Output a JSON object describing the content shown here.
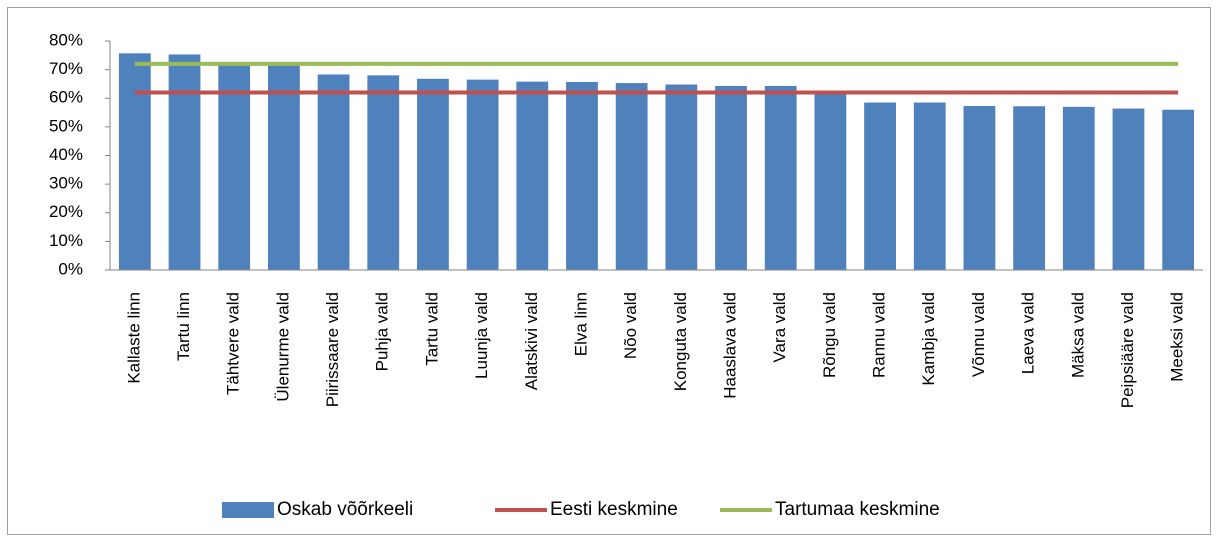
{
  "chart_data": {
    "type": "bar",
    "categories": [
      "Kallaste linn",
      "Tartu linn",
      "Tähtvere vald",
      "Ülenurme vald",
      "Piirissaare vald",
      "Puhja vald",
      "Tartu vald",
      "Luunja vald",
      "Alatskivi vald",
      "Elva linn",
      "Nõo vald",
      "Konguta vald",
      "Haaslava vald",
      "Vara vald",
      "Rõngu vald",
      "Rannu vald",
      "Kambja vald",
      "Võnnu vald",
      "Laeva vald",
      "Mäksa vald",
      "Peipsiääre vald",
      "Meeksi vald"
    ],
    "series": [
      {
        "name": "Oskab võõrkeeli",
        "type": "bar",
        "color": "#4f81bd",
        "values": [
          75.7,
          75.3,
          72.5,
          71.5,
          68.3,
          68.0,
          66.8,
          66.5,
          65.8,
          65.7,
          65.3,
          64.8,
          64.3,
          64.3,
          62.5,
          58.5,
          58.5,
          57.3,
          57.2,
          57.0,
          56.4,
          56.0
        ]
      },
      {
        "name": "Eesti keskmine",
        "type": "line",
        "color": "#c0504d",
        "values": [
          62,
          62,
          62,
          62,
          62,
          62,
          62,
          62,
          62,
          62,
          62,
          62,
          62,
          62,
          62,
          62,
          62,
          62,
          62,
          62,
          62,
          62
        ]
      },
      {
        "name": "Tartumaa keskmine",
        "type": "line",
        "color": "#9bbb59",
        "values": [
          72,
          72,
          72,
          72,
          72,
          72,
          72,
          72,
          72,
          72,
          72,
          72,
          72,
          72,
          72,
          72,
          72,
          72,
          72,
          72,
          72,
          72
        ]
      }
    ],
    "ylim": [
      0,
      80
    ],
    "yticks": [
      {
        "value": 0,
        "label": "0%"
      },
      {
        "value": 10,
        "label": "10%"
      },
      {
        "value": 20,
        "label": "20%"
      },
      {
        "value": 30,
        "label": "30%"
      },
      {
        "value": 40,
        "label": "40%"
      },
      {
        "value": 50,
        "label": "50%"
      },
      {
        "value": 60,
        "label": "60%"
      },
      {
        "value": 70,
        "label": "70%"
      },
      {
        "value": 80,
        "label": "80%"
      }
    ],
    "grid": false,
    "legend": "bottom"
  }
}
